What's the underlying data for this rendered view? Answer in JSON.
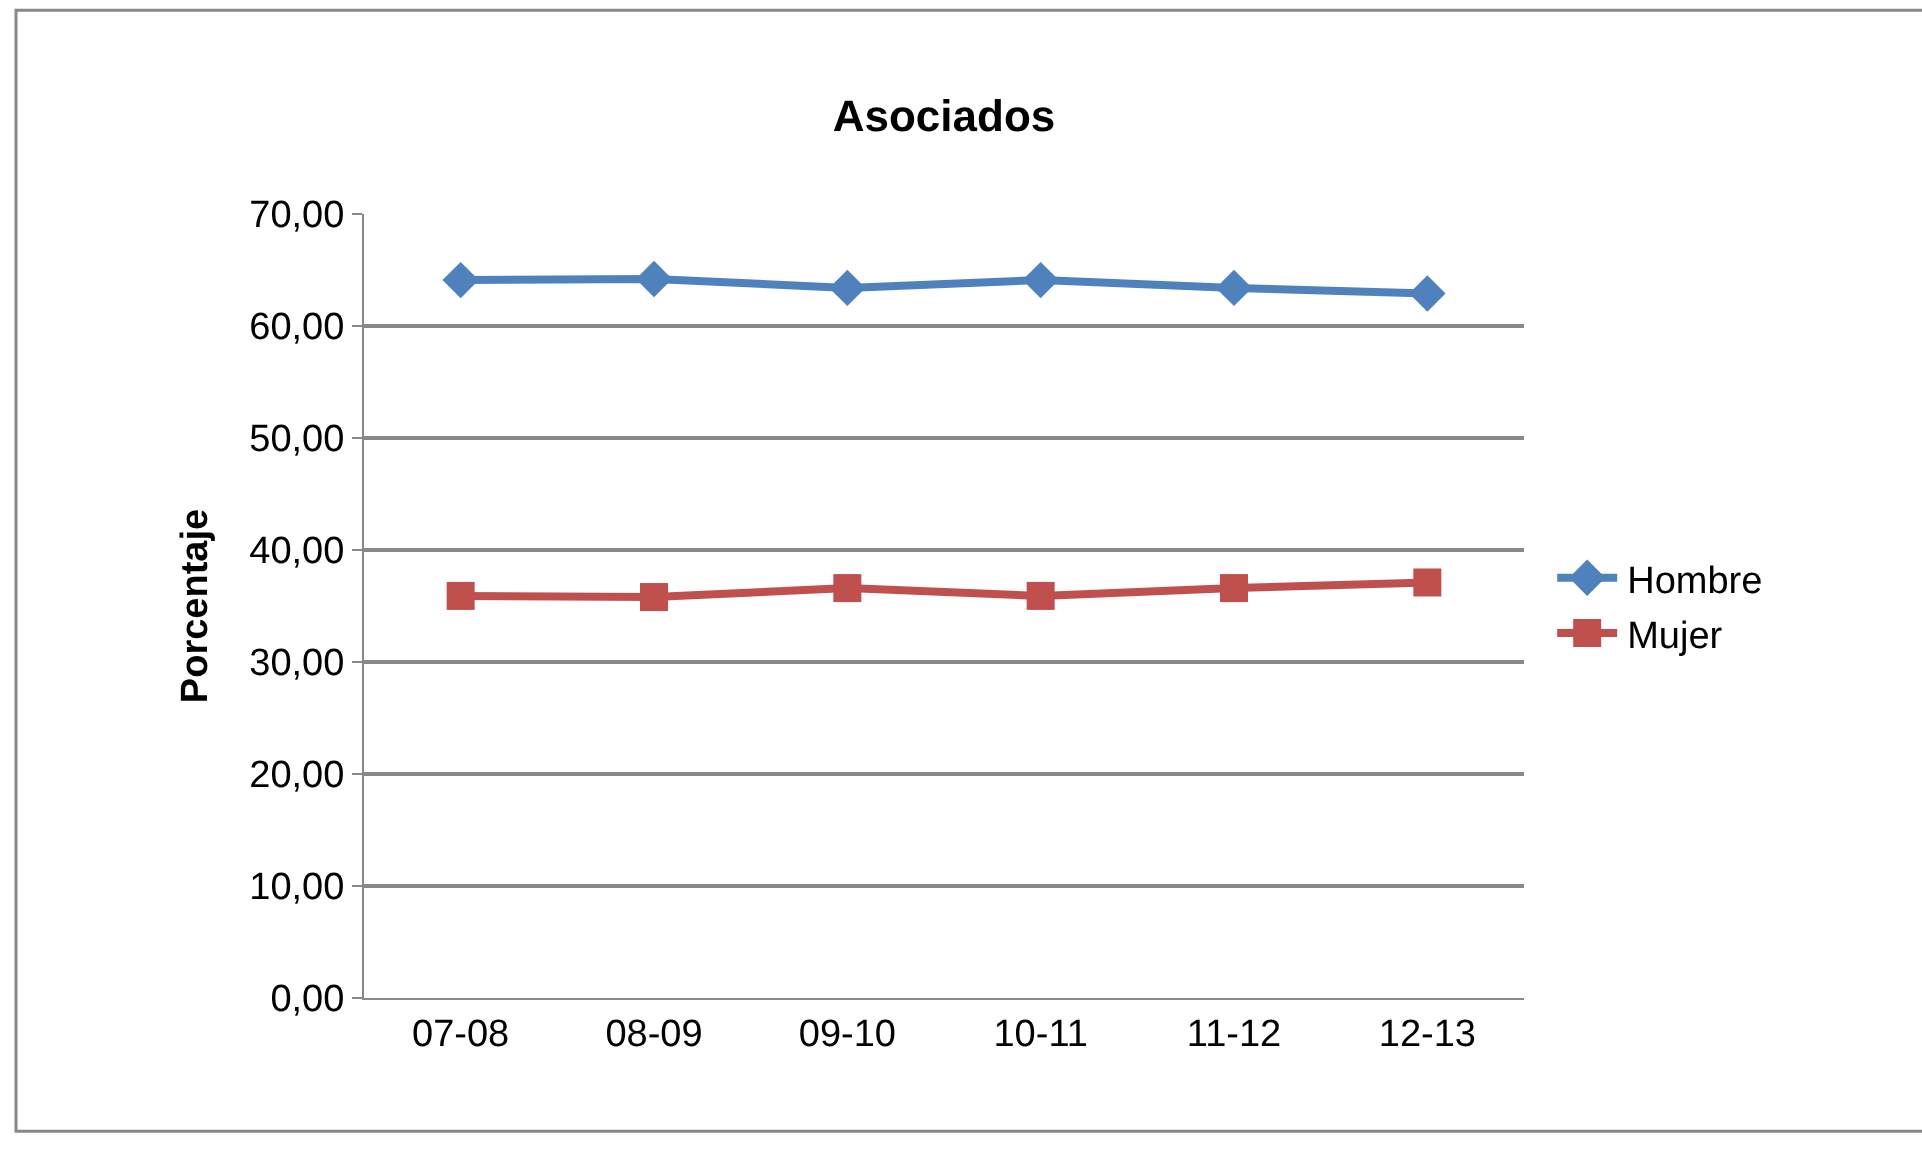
{
  "chart_data": {
    "type": "line",
    "title": "Asociados",
    "ylabel": "Porcentaje",
    "categories": [
      "07-08",
      "08-09",
      "09-10",
      "10-11",
      "11-12",
      "12-13"
    ],
    "series": [
      {
        "name": "Hombre",
        "color": "#4f81bd",
        "marker": "diamond",
        "values": [
          64.1,
          64.2,
          63.4,
          64.1,
          63.4,
          62.9
        ]
      },
      {
        "name": "Mujer",
        "color": "#c0504d",
        "marker": "square",
        "values": [
          35.9,
          35.8,
          36.6,
          35.9,
          36.6,
          37.1
        ]
      }
    ],
    "ylim": [
      0,
      70
    ],
    "yticks": [
      {
        "value": 0,
        "label": "0,00"
      },
      {
        "value": 10,
        "label": "10,00"
      },
      {
        "value": 20,
        "label": "20,00"
      },
      {
        "value": 30,
        "label": "30,00"
      },
      {
        "value": 40,
        "label": "40,00"
      },
      {
        "value": 50,
        "label": "50,00"
      },
      {
        "value": 60,
        "label": "60,00"
      },
      {
        "value": 70,
        "label": "70,00"
      }
    ],
    "grid": "y",
    "legend": "right",
    "line_style": "solid"
  }
}
